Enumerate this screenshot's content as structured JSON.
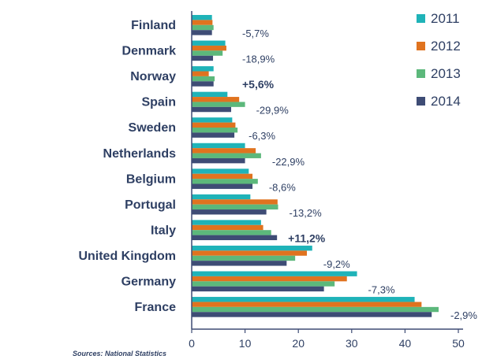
{
  "chart_data": {
    "type": "bar",
    "orientation": "horizontal",
    "categories": [
      "Finland",
      "Denmark",
      "Norway",
      "Spain",
      "Sweden",
      "Netherlands",
      "Belgium",
      "Portugal",
      "Italy",
      "United Kingdom",
      "Germany",
      "France"
    ],
    "series": [
      {
        "name": "2011",
        "color": "#1fb3b8",
        "values": [
          3.8,
          6.3,
          4.1,
          6.7,
          7.6,
          10.0,
          10.7,
          11.0,
          13.0,
          22.6,
          31.0,
          41.8
        ]
      },
      {
        "name": "2012",
        "color": "#e0731f",
        "values": [
          3.9,
          6.5,
          3.2,
          8.9,
          8.2,
          12.0,
          11.4,
          16.1,
          13.4,
          21.6,
          29.1,
          43.1
        ]
      },
      {
        "name": "2013",
        "color": "#5cb87b",
        "values": [
          4.1,
          5.8,
          4.3,
          10.0,
          8.6,
          13.0,
          12.4,
          16.2,
          14.9,
          19.4,
          26.8,
          46.3
        ]
      },
      {
        "name": "2014",
        "color": "#3e4c75",
        "values": [
          3.8,
          4.0,
          4.1,
          7.4,
          8.0,
          10.0,
          11.4,
          14.0,
          16.0,
          17.8,
          24.8,
          45.0
        ]
      }
    ],
    "change_labels": [
      "-5,7%",
      "-18,9%",
      "+5,6%",
      "-29,9%",
      "-6,3%",
      "-22,9%",
      "-8,6%",
      "-13,2%",
      "+11,2%",
      "-9,2%",
      "-7,3%",
      "-2,9%"
    ],
    "highlighted_changes": [
      "+5,6%",
      "+11,2%"
    ],
    "xlim": [
      0,
      50
    ],
    "xticks": [
      0,
      10,
      20,
      30,
      40,
      50
    ],
    "legend": {
      "placement": "top-right",
      "entries": [
        "2011",
        "2012",
        "2013",
        "2014"
      ]
    },
    "grid": false,
    "source": "Sources: National Statistics"
  }
}
